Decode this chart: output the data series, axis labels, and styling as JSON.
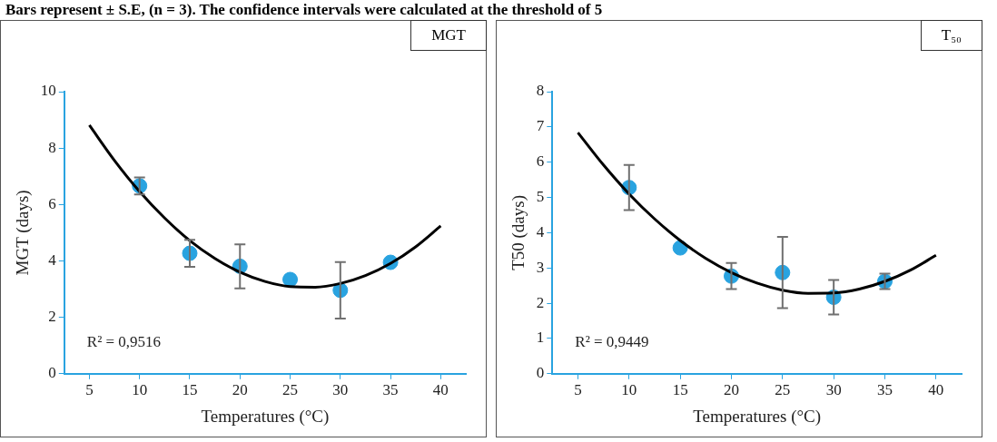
{
  "chart_data": [
    {
      "type": "scatter",
      "title": "MGT",
      "subtitle": "Bars represent ± S.E, (n = 3). The confidence intervals were calculated at the threshold of 5",
      "xlabel": "Temperatures (°C)",
      "ylabel": "MGT (days)",
      "annotations": [
        "R² = 0,9516"
      ],
      "xlim": [
        2.5,
        42.5
      ],
      "xticks": [
        5,
        10,
        15,
        20,
        25,
        30,
        35,
        40
      ],
      "ylim": [
        0,
        10
      ],
      "yticks": [
        0,
        2,
        4,
        6,
        8,
        10
      ],
      "grid": false,
      "legend": false,
      "series": [
        {
          "type": "scatter",
          "color": "#29a3e0",
          "marker": "circle",
          "x": [
            10,
            15,
            20,
            25,
            30,
            35
          ],
          "values": [
            6.66,
            4.27,
            3.81,
            3.34,
            2.96,
            3.95
          ],
          "errors": [
            0.3,
            0.48,
            0.78,
            null,
            1.0,
            null
          ]
        },
        {
          "type": "line",
          "color": "#000000",
          "marker": "none",
          "line_style": "solid",
          "x": [
            5,
            7.5,
            10,
            12.5,
            15,
            17.5,
            20,
            22.5,
            25,
            27.5,
            30,
            32.5,
            35,
            37.5,
            40
          ],
          "values": [
            8.81,
            7.56,
            6.46,
            5.52,
            4.72,
            4.09,
            3.6,
            3.27,
            3.09,
            3.07,
            3.2,
            3.48,
            3.91,
            4.5,
            5.24
          ]
        }
      ]
    },
    {
      "type": "scatter",
      "title": "T₅₀",
      "xlabel": "Temperatures (°C)",
      "ylabel": "T50 (days)",
      "annotations": [
        "R² = 0,9449"
      ],
      "xlim": [
        2.5,
        42.5
      ],
      "xticks": [
        5,
        10,
        15,
        20,
        25,
        30,
        35,
        40
      ],
      "ylim": [
        0,
        8
      ],
      "yticks": [
        0,
        1,
        2,
        3,
        4,
        5,
        6,
        7,
        8
      ],
      "grid": false,
      "legend": false,
      "series": [
        {
          "type": "scatter",
          "color": "#29a3e0",
          "marker": "circle",
          "x": [
            10,
            15,
            20,
            25,
            30,
            35
          ],
          "values": [
            5.28,
            3.57,
            2.77,
            2.87,
            2.17,
            2.62
          ],
          "errors": [
            0.64,
            null,
            0.37,
            1.01,
            0.49,
            0.22
          ]
        },
        {
          "type": "line",
          "color": "#000000",
          "marker": "none",
          "line_style": "solid",
          "x": [
            5,
            7.5,
            10,
            12.5,
            15,
            17.5,
            20,
            22.5,
            25,
            27.5,
            30,
            32.5,
            35,
            37.5,
            40
          ],
          "values": [
            6.84,
            5.92,
            5.1,
            4.39,
            3.78,
            3.27,
            2.87,
            2.57,
            2.37,
            2.28,
            2.29,
            2.4,
            2.62,
            2.94,
            3.36
          ]
        }
      ]
    }
  ]
}
